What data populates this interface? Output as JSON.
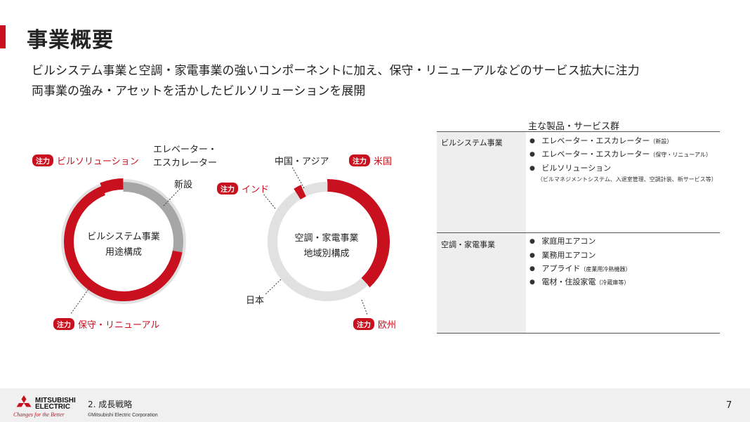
{
  "title": "事業概要",
  "subtitle_lines": [
    "ビルシステム事業と空調・家電事業の強いコンポーネントに加え、保守・リニューアルなどのサービス拡大に注力",
    "両事業の強み・アセットを活かしたビルソリューションを展開"
  ],
  "focus_tag": "注力",
  "colors": {
    "accent": "#c8101e",
    "gray_dark": "#a6a6a6",
    "gray_light": "#e1e1e1"
  },
  "donut_left": {
    "center_lines": [
      "ビルシステム事業",
      "用途構成"
    ],
    "segments": [
      {
        "label_lines": [
          "ビルソリューション"
        ],
        "share": 0.06,
        "focus": true
      },
      {
        "label_lines": [
          "エレベーター・",
          "エスカレーター"
        ],
        "sub_label": "新設",
        "share": 0.28,
        "focus": false
      },
      {
        "label_lines": [
          "保守・リニューアル"
        ],
        "share": 0.66,
        "focus": true
      }
    ]
  },
  "donut_right": {
    "center_lines": [
      "空調・家電事業",
      "地域別構成"
    ],
    "segments": [
      {
        "label": "米国",
        "share": 0.11,
        "focus": true
      },
      {
        "label": "欧州",
        "share": 0.27,
        "focus": true
      },
      {
        "label": "日本",
        "share": 0.53,
        "focus": false
      },
      {
        "label": "インド",
        "share": 0.02,
        "focus": true
      },
      {
        "label": "中国・アジア",
        "share": 0.07,
        "focus": false
      }
    ]
  },
  "table": {
    "title": "主な製品・サービス群",
    "rows": [
      {
        "business": "ビルシステム事業",
        "items": [
          {
            "text": "エレベーター・エスカレーター",
            "small": "（新設）"
          },
          {
            "text": "エレベーター・エスカレーター",
            "small": "（保守・リニューアル）"
          },
          {
            "text": "ビルソリューション",
            "small": ""
          }
        ],
        "note": "（ビルマネジメントシステム、入退室管理、空調計装、新サービス等）"
      },
      {
        "business": "空調・家電事業",
        "items": [
          {
            "text": "家庭用エアコン",
            "small": ""
          },
          {
            "text": "業務用エアコン",
            "small": ""
          },
          {
            "text": "アプライド",
            "small": "（産業用冷熱機器）"
          },
          {
            "text": "電材・住設家電",
            "small": "（冷蔵庫等）"
          }
        ]
      }
    ]
  },
  "footer": {
    "section": "2. 成長戦略",
    "copyright": "©Mitsubishi Electric Corporation",
    "page": "7",
    "logo_lines": [
      "MITSUBISHI",
      "ELECTRIC"
    ],
    "slogan": "Changes for the Better",
    "logo_icon": "three-diamonds-icon"
  }
}
